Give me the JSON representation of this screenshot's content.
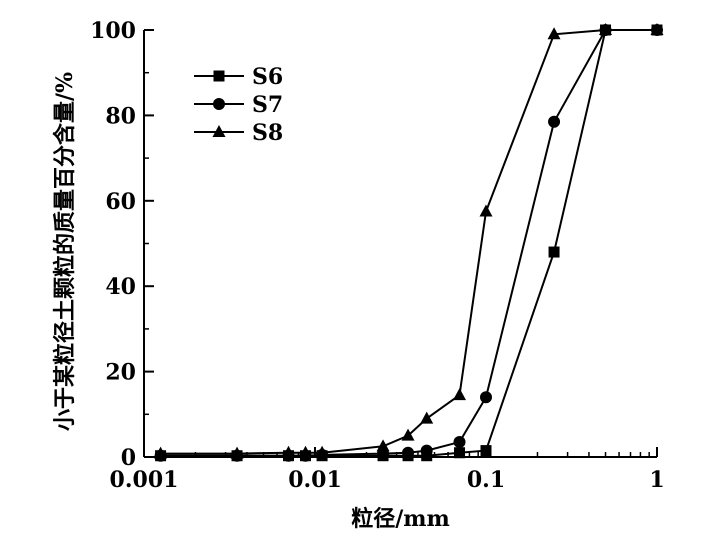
{
  "chart_data": {
    "type": "line",
    "xscale": "log",
    "xlabel": "粒径/mm",
    "ylabel": "小于某粒径土颗粒的质量百分含量/%",
    "xlim": [
      0.001,
      1
    ],
    "ylim": [
      0,
      100
    ],
    "xticks": [
      {
        "value": 0.001,
        "label": "0.001"
      },
      {
        "value": 0.01,
        "label": "0.01"
      },
      {
        "value": 0.1,
        "label": "0.1"
      },
      {
        "value": 1,
        "label": "1"
      }
    ],
    "yticks": [
      {
        "value": 0,
        "label": "0"
      },
      {
        "value": 20,
        "label": "20"
      },
      {
        "value": 40,
        "label": "40"
      },
      {
        "value": 60,
        "label": "60"
      },
      {
        "value": 80,
        "label": "80"
      },
      {
        "value": 100,
        "label": "100"
      }
    ],
    "legend_position": "top-left",
    "series": [
      {
        "name": "S6",
        "marker": "square",
        "points": [
          [
            0.00125,
            0.3
          ],
          [
            0.0035,
            0.3
          ],
          [
            0.007,
            0.3
          ],
          [
            0.0088,
            0.3
          ],
          [
            0.011,
            0.3
          ],
          [
            0.025,
            0.3
          ],
          [
            0.035,
            0.3
          ],
          [
            0.045,
            0.3
          ],
          [
            0.07,
            1.0
          ],
          [
            0.1,
            1.5
          ],
          [
            0.25,
            48
          ],
          [
            0.5,
            100
          ],
          [
            1,
            100
          ]
        ]
      },
      {
        "name": "S7",
        "marker": "circle",
        "points": [
          [
            0.00125,
            0.3
          ],
          [
            0.0035,
            0.3
          ],
          [
            0.007,
            0.3
          ],
          [
            0.0088,
            0.3
          ],
          [
            0.011,
            0.5
          ],
          [
            0.025,
            0.8
          ],
          [
            0.035,
            1.0
          ],
          [
            0.045,
            1.5
          ],
          [
            0.07,
            3.5
          ],
          [
            0.1,
            14
          ],
          [
            0.25,
            78.5
          ],
          [
            0.5,
            100
          ],
          [
            1,
            100
          ]
        ]
      },
      {
        "name": "S8",
        "marker": "triangle",
        "points": [
          [
            0.00125,
            0.8
          ],
          [
            0.0035,
            0.8
          ],
          [
            0.007,
            1.0
          ],
          [
            0.0088,
            1.0
          ],
          [
            0.011,
            1.0
          ],
          [
            0.025,
            2.5
          ],
          [
            0.035,
            5.0
          ],
          [
            0.045,
            9.0
          ],
          [
            0.07,
            14.5
          ],
          [
            0.1,
            57.5
          ],
          [
            0.25,
            99
          ],
          [
            0.5,
            100
          ],
          [
            1,
            100
          ]
        ]
      }
    ]
  }
}
